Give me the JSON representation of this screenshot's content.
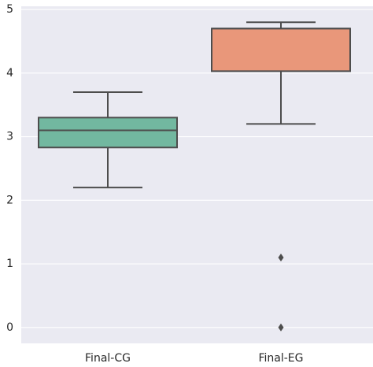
{
  "chart_data": {
    "type": "box",
    "categories": [
      "Final-CG",
      "Final-EG"
    ],
    "boxes": [
      {
        "whislo": 2.2,
        "q1": 2.83,
        "med": 3.1,
        "q3": 3.3,
        "whishi": 3.7,
        "fliers": [],
        "color": "#72b8a0"
      },
      {
        "whislo": 3.2,
        "q1": 4.03,
        "med": 4.7,
        "q3": 4.7,
        "whishi": 4.8,
        "fliers": [
          1.1,
          0
        ],
        "color": "#e9977a"
      }
    ],
    "ylim": [
      -0.25,
      5.05
    ],
    "yticks": [
      0,
      1,
      2,
      3,
      4,
      5
    ],
    "grid": true
  }
}
